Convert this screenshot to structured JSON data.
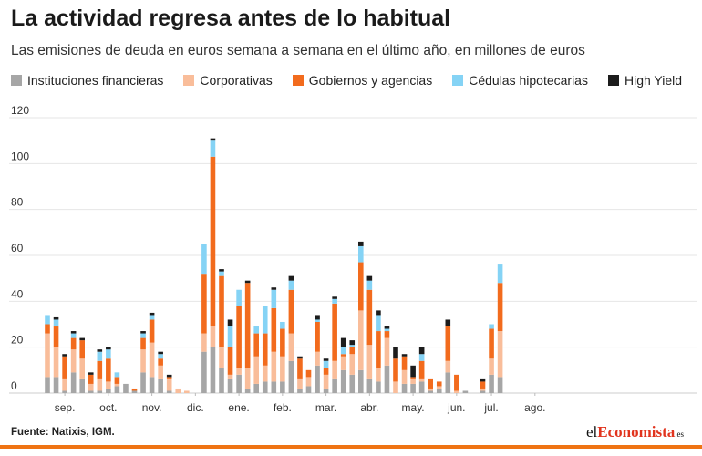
{
  "header": {
    "title": "La actividad regresa antes de lo habitual",
    "subtitle": "Las emisiones de deuda en euros semana a semana en el último año, en millones de euros"
  },
  "footer": {
    "source": "Fuente: Natixis, IGM.",
    "brand_el": "el",
    "brand_mid": "Economista",
    "brand_tld": ".es"
  },
  "colors": {
    "financieras": "#a6a6a6",
    "corporativas": "#f9bd9a",
    "gobiernos": "#f26b1d",
    "cedulas": "#85d3f5",
    "highyield": "#1c1c1c",
    "bar": "#ef7313"
  },
  "chart_data": {
    "type": "bar",
    "stacked": true,
    "title": "La actividad regresa antes de lo habitual",
    "ylim": [
      0,
      120
    ],
    "yticks": [
      0,
      20,
      40,
      60,
      80,
      100,
      120
    ],
    "grid": true,
    "legend_position": "top",
    "month_labels": [
      {
        "label": "sep.",
        "at_week": 2
      },
      {
        "label": "oct.",
        "at_week": 7
      },
      {
        "label": "nov.",
        "at_week": 12
      },
      {
        "label": "dic.",
        "at_week": 17
      },
      {
        "label": "ene.",
        "at_week": 22
      },
      {
        "label": "feb.",
        "at_week": 27
      },
      {
        "label": "mar.",
        "at_week": 32
      },
      {
        "label": "abr.",
        "at_week": 37
      },
      {
        "label": "may.",
        "at_week": 42
      },
      {
        "label": "jun.",
        "at_week": 47
      },
      {
        "label": "jul.",
        "at_week": 51
      },
      {
        "label": "ago.",
        "at_week": 56
      }
    ],
    "series": [
      {
        "name": "Instituciones financieras",
        "color": "#a6a6a6",
        "values": [
          7,
          7,
          1,
          9,
          6,
          1,
          1,
          2,
          3,
          4,
          1,
          9,
          7,
          6,
          1,
          0,
          0,
          0,
          18,
          20,
          11,
          6,
          8,
          2,
          4,
          5,
          5,
          5,
          14,
          2,
          3,
          12,
          2,
          6,
          10,
          8,
          10,
          6,
          5,
          12,
          0,
          4,
          4,
          5,
          1,
          2,
          9,
          0,
          1,
          0,
          1,
          8,
          7
        ]
      },
      {
        "name": "Corporativas",
        "color": "#f9bd9a",
        "values": [
          19,
          13,
          5,
          10,
          9,
          3,
          5,
          3,
          1,
          0,
          0,
          10,
          15,
          6,
          5,
          2,
          1,
          0,
          8,
          9,
          9,
          2,
          3,
          9,
          12,
          7,
          13,
          11,
          12,
          4,
          4,
          6,
          6,
          8,
          6,
          9,
          26,
          15,
          6,
          12,
          5,
          6,
          2,
          1,
          1,
          1,
          5,
          1,
          0,
          0,
          1,
          7,
          20
        ]
      },
      {
        "name": "Gobiernos y agencias",
        "color": "#f26b1d",
        "values": [
          4,
          9,
          10,
          5,
          8,
          4,
          8,
          10,
          3,
          0,
          1,
          5,
          10,
          3,
          1,
          0,
          0,
          0,
          26,
          74,
          31,
          12,
          27,
          37,
          10,
          14,
          19,
          12,
          19,
          9,
          3,
          13,
          3,
          25,
          1,
          3,
          21,
          24,
          16,
          3,
          10,
          6,
          1,
          8,
          4,
          2,
          15,
          7,
          0,
          0,
          3,
          13,
          21
        ]
      },
      {
        "name": "Cédulas hipotecarias",
        "color": "#85d3f5",
        "values": [
          4,
          3,
          0,
          2,
          0,
          0,
          4,
          4,
          2,
          0,
          0,
          2,
          2,
          2,
          0,
          0,
          0,
          0,
          13,
          7,
          2,
          9,
          7,
          0,
          3,
          12,
          8,
          3,
          4,
          0,
          0,
          1,
          3,
          2,
          3,
          1,
          7,
          4,
          7,
          1,
          0,
          0,
          0,
          3,
          0,
          0,
          0,
          0,
          0,
          0,
          0,
          2,
          8
        ]
      },
      {
        "name": "High Yield",
        "color": "#1c1c1c",
        "values": [
          0,
          1,
          1,
          1,
          1,
          1,
          1,
          1,
          0,
          0,
          0,
          1,
          1,
          1,
          1,
          0,
          0,
          0,
          0,
          1,
          1,
          3,
          0,
          1,
          0,
          0,
          1,
          0,
          2,
          1,
          0,
          2,
          1,
          1,
          4,
          2,
          2,
          2,
          2,
          1,
          5,
          1,
          5,
          3,
          0,
          0,
          3,
          0,
          0,
          0,
          1,
          0,
          0
        ]
      }
    ]
  }
}
